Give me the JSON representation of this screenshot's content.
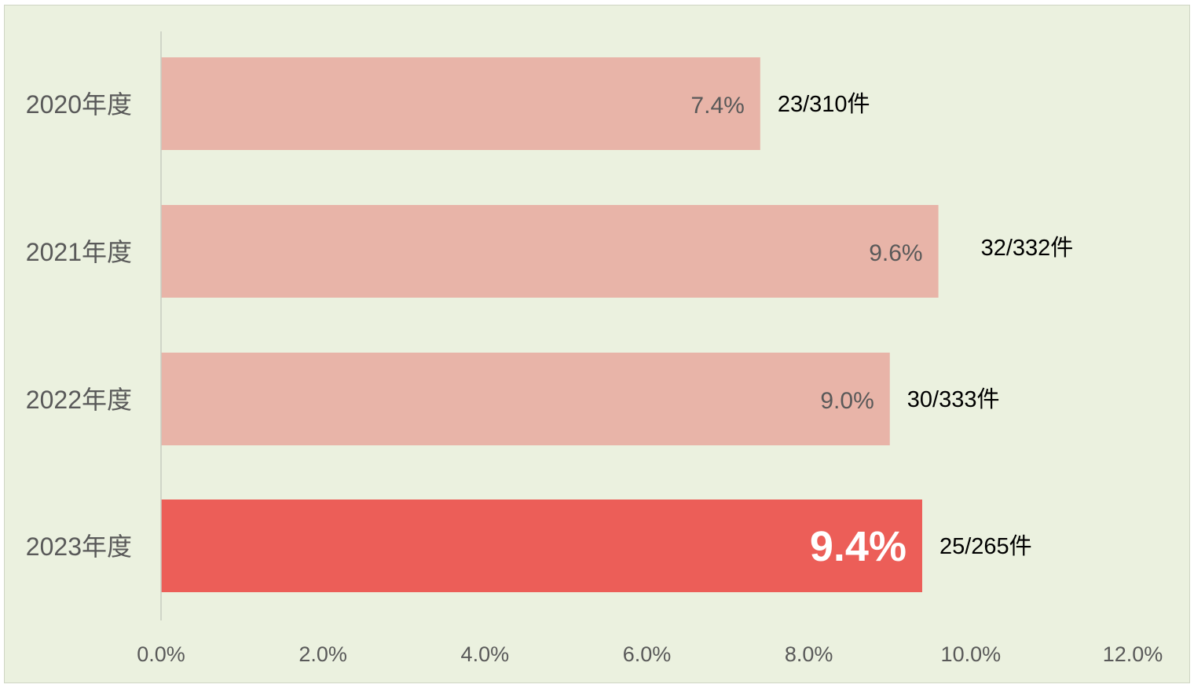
{
  "colors": {
    "background": "#ebf1df",
    "bar_default": "#e8b4a8",
    "bar_highlight": "#ec5e58",
    "axis_line": "#c8ccc0",
    "tick_text": "#595959",
    "value_text": "#595959",
    "highlight_value_text": "#ffffff",
    "count_text": "#000000"
  },
  "chart_data": {
    "type": "bar",
    "orientation": "horizontal",
    "categories": [
      "2020年度",
      "2021年度",
      "2022年度",
      "2023年度"
    ],
    "values": [
      7.4,
      9.6,
      9.0,
      9.4
    ],
    "value_labels": [
      "7.4%",
      "9.6%",
      "9.0%",
      "9.4%"
    ],
    "count_labels": [
      "23/310件",
      "32/332件",
      "30/333件",
      "25/265件"
    ],
    "highlight_index": 3,
    "xlim": [
      0,
      12
    ],
    "xticks": [
      0,
      2,
      4,
      6,
      8,
      10,
      12
    ],
    "xtick_labels": [
      "0.0%",
      "2.0%",
      "4.0%",
      "6.0%",
      "8.0%",
      "10.0%",
      "12.0%"
    ],
    "grid": false,
    "title": "",
    "xlabel": "",
    "ylabel": ""
  }
}
